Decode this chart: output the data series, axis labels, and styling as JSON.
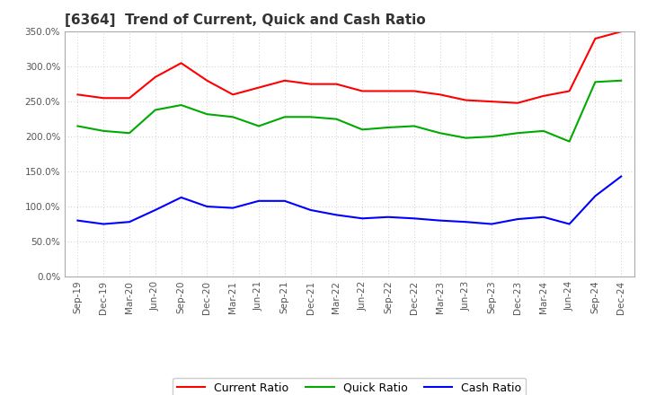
{
  "title": "[6364]  Trend of Current, Quick and Cash Ratio",
  "x_labels": [
    "Sep-19",
    "Dec-19",
    "Mar-20",
    "Jun-20",
    "Sep-20",
    "Dec-20",
    "Mar-21",
    "Jun-21",
    "Sep-21",
    "Dec-21",
    "Mar-22",
    "Jun-22",
    "Sep-22",
    "Dec-22",
    "Mar-23",
    "Jun-23",
    "Sep-23",
    "Dec-23",
    "Mar-24",
    "Jun-24",
    "Sep-24",
    "Dec-24"
  ],
  "current_ratio": [
    260,
    255,
    255,
    285,
    305,
    280,
    260,
    270,
    280,
    275,
    275,
    265,
    265,
    265,
    260,
    252,
    250,
    248,
    258,
    265,
    340,
    350
  ],
  "quick_ratio": [
    215,
    208,
    205,
    238,
    245,
    232,
    228,
    215,
    228,
    228,
    225,
    210,
    213,
    215,
    205,
    198,
    200,
    205,
    208,
    193,
    278,
    280
  ],
  "cash_ratio": [
    80,
    75,
    78,
    95,
    113,
    100,
    98,
    108,
    108,
    95,
    88,
    83,
    85,
    83,
    80,
    78,
    75,
    82,
    85,
    75,
    115,
    143
  ],
  "current_color": "#ff0000",
  "quick_color": "#00aa00",
  "cash_color": "#0000ff",
  "bg_color": "#ffffff",
  "grid_color": "#bbbbbb",
  "ylim": [
    0,
    350
  ],
  "yticks": [
    0,
    50,
    100,
    150,
    200,
    250,
    300,
    350
  ]
}
